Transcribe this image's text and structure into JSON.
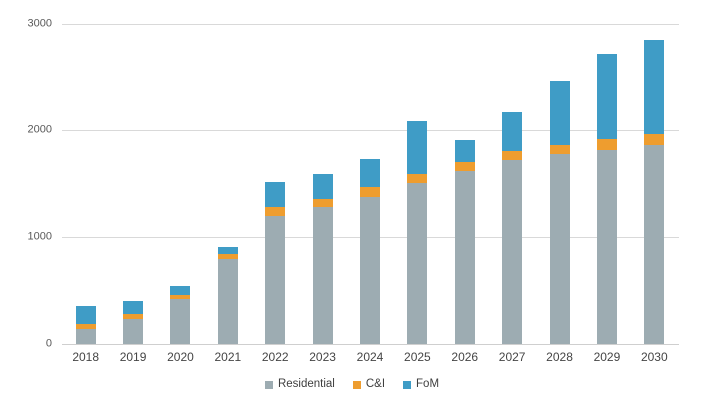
{
  "chart_data": {
    "type": "bar",
    "stacked": true,
    "title": "",
    "xlabel": "",
    "ylabel": "",
    "categories": [
      "2018",
      "2019",
      "2020",
      "2021",
      "2022",
      "2023",
      "2024",
      "2025",
      "2026",
      "2027",
      "2028",
      "2029",
      "2030"
    ],
    "series": [
      {
        "name": "Residential",
        "color": "#9DACB2",
        "values": [
          140,
          230,
          420,
          800,
          1200,
          1280,
          1380,
          1510,
          1615,
          1720,
          1780,
          1820,
          1865
        ]
      },
      {
        "name": "C&I",
        "color": "#EE9D2F",
        "values": [
          45,
          55,
          40,
          45,
          85,
          80,
          90,
          80,
          90,
          90,
          85,
          95,
          100
        ]
      },
      {
        "name": "FoM",
        "color": "#3F9CC6",
        "values": [
          175,
          115,
          85,
          65,
          235,
          235,
          265,
          500,
          205,
          360,
          600,
          795,
          885
        ]
      }
    ],
    "totals": [
      360,
      400,
      545,
      910,
      1520,
      1595,
      1735,
      2090,
      1910,
      2170,
      2465,
      2710,
      2850
    ],
    "ylim": [
      0,
      3000
    ],
    "yticks": [
      0,
      1000,
      2000,
      3000
    ],
    "grid": "horizontal",
    "legend_position": "bottom-center"
  },
  "colors": {
    "background": "#FFFFFF",
    "gridline": "#D9D9D9",
    "axis_line": "#CFCFCF",
    "y_tick_label": "#595959",
    "x_tick_label": "#454545",
    "legend_text": "#3F3F3F"
  }
}
